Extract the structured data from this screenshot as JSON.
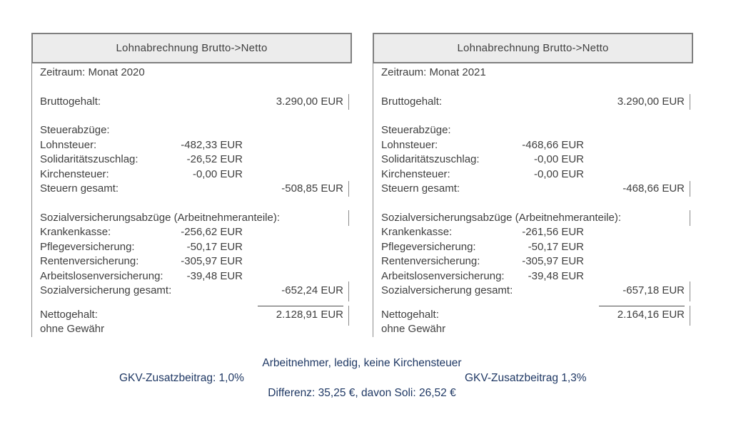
{
  "colors": {
    "header_bg": "#ececec",
    "header_border": "#7f7f7f",
    "body_text": "#3f3f3f",
    "cell_border": "#8a8a8a",
    "note_blue": "#1f3864"
  },
  "panels": [
    {
      "title": "Lohnabrechnung Brutto->Netto",
      "period": "Zeitraum: Monat 2020",
      "rows": [
        {
          "label": "Bruttogehalt:",
          "right": "3.290,00 EUR",
          "tick": true
        },
        {
          "spacer": true
        },
        {
          "label": "Steuerabzüge:"
        },
        {
          "label": "Lohnsteuer:",
          "mid": "-482,33 EUR"
        },
        {
          "label": "Solidaritätszuschlag:",
          "mid": "-26,52 EUR"
        },
        {
          "label": "Kirchensteuer:",
          "mid": "-0,00 EUR"
        },
        {
          "label": "Steuern gesamt:",
          "right": "-508,85 EUR",
          "tick": true
        },
        {
          "spacer": true
        },
        {
          "label": "Sozialversicherungsabzüge (Arbeitnehmeranteile):",
          "tick": true
        },
        {
          "label": "Krankenkasse:",
          "mid": "-256,62 EUR"
        },
        {
          "label": "Pflegeversicherung:",
          "mid": "-50,17 EUR"
        },
        {
          "label": "Rentenversicherung:",
          "mid": "-305,97 EUR"
        },
        {
          "label": "Arbeitslosenversicherung:",
          "mid": "-39,48 EUR"
        },
        {
          "label": "Sozialversicherung gesamt:",
          "right": "-652,24 EUR",
          "tick": true,
          "bigtick": true
        },
        {
          "sumline": true
        },
        {
          "label": "Nettogehalt:",
          "right": "2.128,91 EUR",
          "tick": true,
          "bigtick": true
        },
        {
          "label": "ohne Gewähr"
        }
      ]
    },
    {
      "title": "Lohnabrechnung Brutto->Netto",
      "period": "Zeitraum: Monat 2021",
      "rows": [
        {
          "label": "Bruttogehalt:",
          "right": "3.290,00 EUR",
          "tick": true
        },
        {
          "spacer": true
        },
        {
          "label": "Steuerabzüge:"
        },
        {
          "label": "Lohnsteuer:",
          "mid": "-468,66 EUR"
        },
        {
          "label": "Solidaritätszuschlag:",
          "mid": "-0,00 EUR"
        },
        {
          "label": "Kirchensteuer:",
          "mid": "-0,00 EUR"
        },
        {
          "label": "Steuern gesamt:",
          "right": "-468,66 EUR",
          "tick": true
        },
        {
          "spacer": true
        },
        {
          "label": "Sozialversicherungsabzüge (Arbeitnehmeranteile):",
          "tick": true
        },
        {
          "label": "Krankenkasse:",
          "mid": "-261,56 EUR"
        },
        {
          "label": "Pflegeversicherung:",
          "mid": "-50,17 EUR"
        },
        {
          "label": "Rentenversicherung:",
          "mid": "-305,97 EUR"
        },
        {
          "label": "Arbeitslosenversicherung:",
          "mid": "-39,48 EUR"
        },
        {
          "label": "Sozialversicherung gesamt:",
          "right": "-657,18 EUR",
          "tick": true,
          "bigtick": true
        },
        {
          "sumline": true
        },
        {
          "label": "Nettogehalt:",
          "right": "2.164,16 EUR",
          "tick": true,
          "bigtick": true
        },
        {
          "label": "ohne Gewähr"
        }
      ]
    }
  ],
  "notes": {
    "employee_status": "Arbeitnehmer, ledig, keine Kirchensteuer",
    "gkv_2020": "GKV-Zusatzbeitrag: 1,0%",
    "gkv_2021": "GKV-Zusatzbeitrag 1,3%",
    "difference": "Differenz: 35,25 €, davon Soli: 26,52 €"
  }
}
